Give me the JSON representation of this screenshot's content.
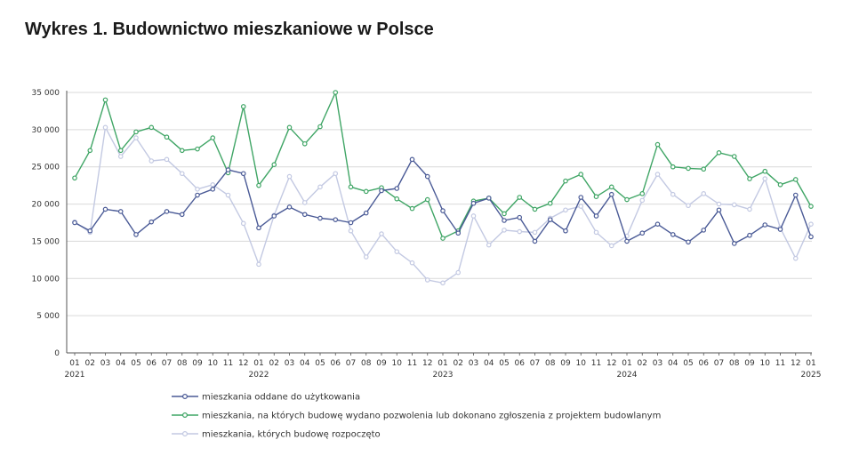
{
  "title": "Wykres 1. Budownictwo mieszkaniowe w Polsce",
  "chart_data": {
    "type": "line",
    "ylim": [
      0,
      35000
    ],
    "yticks": [
      0,
      5000,
      10000,
      15000,
      20000,
      25000,
      30000,
      35000
    ],
    "ytick_labels": [
      "0",
      "5 000",
      "10 000",
      "15 000",
      "20 000",
      "25 000",
      "30 000",
      "35 000"
    ],
    "months": [
      "01",
      "02",
      "03",
      "04",
      "05",
      "06",
      "07",
      "08",
      "09",
      "10",
      "11",
      "12",
      "01",
      "02",
      "03",
      "04",
      "05",
      "06",
      "07",
      "08",
      "09",
      "10",
      "11",
      "12",
      "01",
      "02",
      "03",
      "04",
      "05",
      "06",
      "07",
      "08",
      "09",
      "10",
      "11",
      "12",
      "01",
      "02",
      "03",
      "04",
      "05",
      "06",
      "07",
      "08",
      "09",
      "10",
      "11",
      "12",
      "01"
    ],
    "years": [
      {
        "index": 0,
        "label": "2021"
      },
      {
        "index": 12,
        "label": "2022"
      },
      {
        "index": 24,
        "label": "2023"
      },
      {
        "index": 36,
        "label": "2024"
      },
      {
        "index": 48,
        "label": "2025"
      }
    ],
    "grid": true,
    "legend_position": "bottom",
    "series": [
      {
        "name": "mieszkania oddane do użytkowania",
        "color": "#4a5a96",
        "values": [
          17500,
          16400,
          19300,
          19000,
          15900,
          17600,
          19000,
          18600,
          21200,
          22000,
          24600,
          24100,
          16800,
          18400,
          19600,
          18600,
          18100,
          17900,
          17500,
          18800,
          21800,
          22100,
          26000,
          23700,
          19100,
          16100,
          20100,
          20800,
          17800,
          18200,
          15000,
          17900,
          16400,
          20900,
          18400,
          21300,
          15000,
          16100,
          17300,
          15900,
          14900,
          16500,
          19200,
          14700,
          15800,
          17200,
          16600,
          21200,
          15600
        ]
      },
      {
        "name": "mieszkania, na których budowę wydano pozwolenia lub dokonano zgłoszenia z projektem budowlanym",
        "color": "#3fa565",
        "values": [
          23500,
          27200,
          34000,
          27200,
          29700,
          30300,
          29000,
          27200,
          27400,
          28900,
          24200,
          33100,
          22500,
          25300,
          30300,
          28100,
          30400,
          35000,
          22300,
          21700,
          22200,
          20700,
          19400,
          20600,
          15400,
          16400,
          20400,
          20800,
          18700,
          20900,
          19300,
          20100,
          23100,
          24000,
          21000,
          22300,
          20600,
          21400,
          28000,
          25000,
          24800,
          24700,
          26900,
          26400,
          23400,
          24400,
          22600,
          23300,
          19700
        ]
      },
      {
        "name": "mieszkania, których budowę rozpoczęto",
        "color": "#c3c9e2",
        "values": [
          17600,
          16200,
          30300,
          26400,
          28900,
          25800,
          26000,
          24100,
          22000,
          22600,
          21200,
          17400,
          11900,
          18500,
          23700,
          20200,
          22300,
          24100,
          16400,
          12900,
          16000,
          13600,
          12100,
          9800,
          9400,
          10800,
          18400,
          14500,
          16500,
          16300,
          16200,
          18100,
          19200,
          19700,
          16200,
          14400,
          15700,
          20500,
          24000,
          21300,
          19800,
          21400,
          20000,
          19900,
          19300,
          23400,
          16800,
          12700,
          17300
        ]
      }
    ]
  }
}
